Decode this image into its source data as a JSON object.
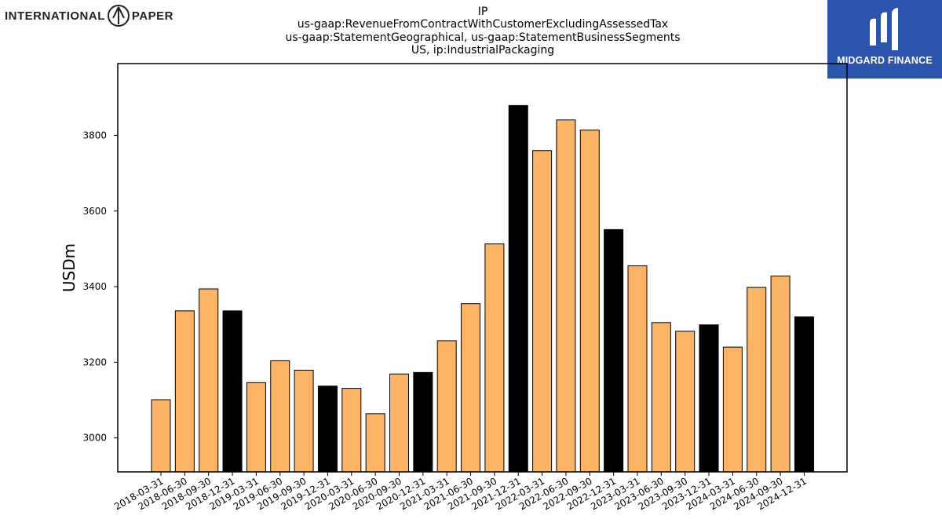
{
  "brand": {
    "left_logo_word_1": "INTERNATIONAL",
    "left_logo_word_2": "PAPER",
    "right_logo_text": "MIDGARD FINANCE"
  },
  "header": {
    "line1": "IP",
    "line2": "us-gaap:RevenueFromContractWithCustomerExcludingAssessedTax",
    "line3": "us-gaap:StatementGeographical, us-gaap:StatementBusinessSegments",
    "line4": "US, ip:IndustrialPackaging"
  },
  "colors": {
    "bar_quarter": "#fbb366",
    "bar_year_end": "#000000",
    "logo_bg": "#2b55ad"
  },
  "chart_data": {
    "type": "bar",
    "title": "",
    "xlabel": "",
    "ylabel": "USDm",
    "ylim": [
      2910,
      3990
    ],
    "yticks": [
      3000,
      3200,
      3400,
      3600,
      3800
    ],
    "grid": false,
    "categories": [
      "2018-03-31",
      "2018-06-30",
      "2018-09-30",
      "2018-12-31",
      "2019-03-31",
      "2019-06-30",
      "2019-09-30",
      "2019-12-31",
      "2020-03-31",
      "2020-06-30",
      "2020-09-30",
      "2020-12-31",
      "2021-03-31",
      "2021-06-30",
      "2021-09-30",
      "2021-12-31",
      "2022-03-31",
      "2022-06-30",
      "2022-09-30",
      "2022-12-31",
      "2023-03-31",
      "2023-06-30",
      "2023-09-30",
      "2023-12-31",
      "2024-03-31",
      "2024-06-30",
      "2024-09-30",
      "2024-12-31"
    ],
    "values": [
      3101,
      3336,
      3394,
      3336,
      3146,
      3204,
      3179,
      3137,
      3131,
      3064,
      3169,
      3173,
      3257,
      3355,
      3513,
      3879,
      3760,
      3841,
      3814,
      3551,
      3455,
      3305,
      3282,
      3299,
      3240,
      3398,
      3428,
      3320
    ],
    "year_end": [
      false,
      false,
      false,
      true,
      false,
      false,
      false,
      true,
      false,
      false,
      false,
      true,
      false,
      false,
      false,
      true,
      false,
      false,
      false,
      true,
      false,
      false,
      false,
      true,
      false,
      false,
      false,
      true
    ]
  }
}
